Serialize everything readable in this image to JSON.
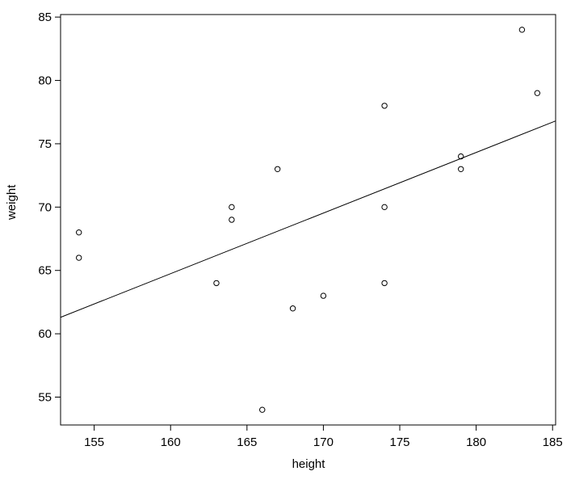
{
  "figure": {
    "background": "#ffffff",
    "foreground": "#000000"
  },
  "chart_data": {
    "type": "scatter",
    "title": "",
    "xlabel": "height",
    "ylabel": "weight",
    "xlim": [
      152.8,
      185.2
    ],
    "ylim": [
      52.8,
      85.2
    ],
    "x_ticks": [
      155,
      160,
      165,
      170,
      175,
      180,
      185
    ],
    "y_ticks": [
      55,
      60,
      65,
      70,
      75,
      80,
      85
    ],
    "grid": false,
    "legend_position": "none",
    "point_style": "open-circle",
    "point_color": "#000000",
    "line_color": "#000000",
    "points": [
      {
        "x": 154,
        "y": 68
      },
      {
        "x": 154,
        "y": 66
      },
      {
        "x": 163,
        "y": 64
      },
      {
        "x": 164,
        "y": 70
      },
      {
        "x": 164,
        "y": 69
      },
      {
        "x": 166,
        "y": 54
      },
      {
        "x": 167,
        "y": 73
      },
      {
        "x": 168,
        "y": 62
      },
      {
        "x": 170,
        "y": 63
      },
      {
        "x": 174,
        "y": 78
      },
      {
        "x": 174,
        "y": 70
      },
      {
        "x": 174,
        "y": 64
      },
      {
        "x": 179,
        "y": 74
      },
      {
        "x": 179,
        "y": 73
      },
      {
        "x": 183,
        "y": 84
      },
      {
        "x": 184,
        "y": 79
      }
    ],
    "regression_line": {
      "slope": 0.479,
      "intercept": -11.9,
      "x1": 152.8,
      "y1": 61.3,
      "x2": 185.2,
      "y2": 76.8
    }
  }
}
